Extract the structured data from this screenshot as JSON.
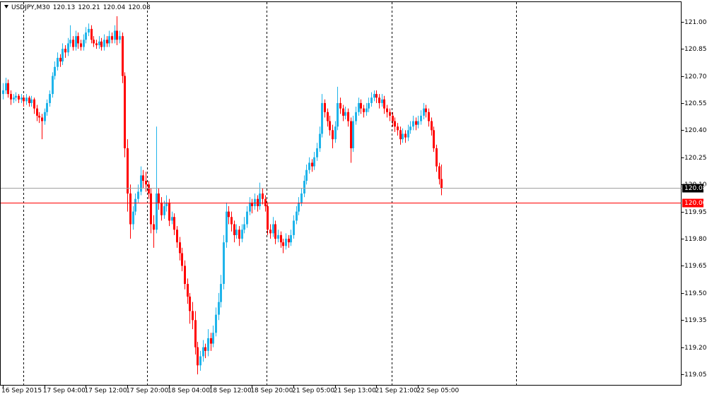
{
  "chart_data": {
    "type": "candlestick",
    "symbol": "USDJPY,M30",
    "bull_color": "#1fb4ea",
    "bear_color": "#ff0000",
    "ylim": [
      118.99,
      121.11
    ],
    "yticks": [
      {
        "value": 121,
        "label": "121.00"
      },
      120.85,
      {
        "value": 120.7,
        "label": "120.70"
      },
      120.55,
      {
        "value": 120.4,
        "label": "120.40"
      },
      120.25,
      {
        "value": 120.1,
        "label": "120.10"
      },
      119.95,
      {
        "value": 119.8,
        "label": "119.80"
      },
      119.65,
      {
        "value": 119.5,
        "label": "119.50"
      },
      119.35,
      {
        "value": 119.2,
        "label": "119.20"
      },
      119.05
    ],
    "hline": {
      "value": 120,
      "label": "120.00",
      "color": "#ff0000"
    },
    "categories": [
      "16 Sep 2015",
      null,
      null,
      null,
      null,
      null,
      null,
      null,
      null,
      null,
      null,
      null,
      null,
      null,
      null,
      null,
      "17 Sep 04:00",
      null,
      null,
      null,
      null,
      null,
      null,
      null,
      null,
      null,
      null,
      null,
      null,
      null,
      null,
      null,
      "17 Sep 12:00",
      null,
      null,
      null,
      null,
      null,
      null,
      null,
      null,
      null,
      null,
      null,
      null,
      null,
      null,
      null,
      "17 Sep 20:00",
      null,
      null,
      null,
      null,
      null,
      null,
      null,
      null,
      null,
      null,
      null,
      null,
      null,
      null,
      null,
      "18 Sep 04:00",
      null,
      null,
      null,
      null,
      null,
      null,
      null,
      null,
      null,
      null,
      null,
      null,
      null,
      null,
      null,
      "18 Sep 12:00",
      null,
      null,
      null,
      null,
      null,
      null,
      null,
      null,
      null,
      null,
      null,
      null,
      null,
      null,
      null,
      "18 Sep 20:00",
      null,
      null,
      null,
      null,
      null,
      null,
      null,
      null,
      null,
      null,
      null,
      null,
      null,
      null,
      null,
      "21 Sep 05:00",
      null,
      null,
      null,
      null,
      null,
      null,
      null,
      null,
      null,
      null,
      null,
      null,
      null,
      null,
      null,
      "21 Sep 13:00",
      null,
      null,
      null,
      null,
      null,
      null,
      null,
      null,
      null,
      null,
      null,
      null,
      null,
      null,
      null,
      "21 Sep 21:00",
      null,
      null,
      null,
      null,
      null,
      null,
      null,
      null,
      null,
      null,
      null,
      null,
      null,
      null,
      null,
      "22 Sep 05:00",
      null,
      null,
      null,
      null,
      null,
      null,
      null,
      null,
      null
    ],
    "ohlc": [
      [
        120.6,
        120.66,
        120.57,
        120.62
      ],
      [
        120.62,
        120.69,
        120.6,
        120.66
      ],
      [
        120.66,
        120.68,
        120.58,
        120.6
      ],
      [
        120.6,
        120.62,
        120.54,
        120.57
      ],
      [
        120.57,
        120.6,
        120.55,
        120.58
      ],
      [
        120.58,
        120.61,
        120.56,
        120.59
      ],
      [
        120.59,
        120.6,
        120.55,
        120.57
      ],
      [
        120.57,
        120.6,
        120.55,
        120.58
      ],
      [
        120.58,
        120.59,
        120.53,
        120.56
      ],
      [
        120.56,
        120.6,
        120.54,
        120.58
      ],
      [
        120.58,
        120.59,
        120.53,
        120.55
      ],
      [
        120.55,
        120.59,
        120.53,
        120.57
      ],
      [
        120.57,
        120.58,
        120.49,
        120.52
      ],
      [
        120.52,
        120.54,
        120.45,
        120.48
      ],
      [
        120.48,
        120.5,
        120.44,
        120.47
      ],
      [
        120.47,
        120.49,
        120.35,
        120.45
      ],
      [
        120.45,
        120.52,
        120.43,
        120.5
      ],
      [
        120.5,
        120.57,
        120.48,
        120.55
      ],
      [
        120.55,
        120.62,
        120.53,
        120.6
      ],
      [
        120.6,
        120.72,
        120.58,
        120.7
      ],
      [
        120.7,
        120.78,
        120.68,
        120.75
      ],
      [
        120.75,
        120.83,
        120.73,
        120.8
      ],
      [
        120.8,
        120.82,
        120.75,
        120.78
      ],
      [
        120.78,
        120.88,
        120.76,
        120.85
      ],
      [
        120.85,
        120.87,
        120.8,
        120.83
      ],
      [
        120.83,
        120.91,
        120.81,
        120.88
      ],
      [
        120.88,
        120.98,
        120.86,
        120.9
      ],
      [
        120.9,
        120.92,
        120.84,
        120.86
      ],
      [
        120.86,
        120.95,
        120.84,
        120.92
      ],
      [
        120.92,
        120.94,
        120.85,
        120.88
      ],
      [
        120.88,
        120.9,
        120.84,
        120.86
      ],
      [
        120.86,
        120.93,
        120.84,
        120.9
      ],
      [
        120.9,
        120.97,
        120.88,
        120.94
      ],
      [
        120.94,
        120.99,
        120.92,
        120.96
      ],
      [
        120.96,
        120.98,
        120.88,
        120.9
      ],
      [
        120.9,
        120.92,
        120.86,
        120.88
      ],
      [
        120.88,
        120.9,
        120.85,
        120.87
      ],
      [
        120.87,
        120.92,
        120.85,
        120.89
      ],
      [
        120.89,
        120.91,
        120.84,
        120.86
      ],
      [
        120.86,
        120.93,
        120.84,
        120.9
      ],
      [
        120.9,
        120.92,
        120.86,
        120.88
      ],
      [
        120.88,
        120.95,
        120.86,
        120.92
      ],
      [
        120.92,
        120.94,
        120.88,
        120.9
      ],
      [
        120.9,
        120.98,
        120.88,
        120.95
      ],
      [
        120.95,
        121.03,
        120.87,
        120.9
      ],
      [
        120.9,
        120.95,
        120.88,
        120.92
      ],
      [
        120.92,
        120.94,
        120.66,
        120.7
      ],
      [
        120.7,
        120.72,
        120.25,
        120.3
      ],
      [
        120.3,
        120.35,
        119.95,
        120.05
      ],
      [
        120.05,
        120.1,
        119.8,
        119.88
      ],
      [
        119.88,
        119.98,
        119.85,
        119.95
      ],
      [
        119.95,
        120.05,
        119.93,
        120.02
      ],
      [
        120.02,
        120.1,
        120.0,
        120.06
      ],
      [
        120.06,
        120.2,
        120.04,
        120.15
      ],
      [
        120.15,
        120.18,
        120.08,
        120.12
      ],
      [
        120.12,
        120.17,
        120.06,
        120.1
      ],
      [
        120.1,
        120.12,
        120.02,
        120.05
      ],
      [
        120.05,
        120.08,
        119.83,
        119.88
      ],
      [
        119.88,
        119.93,
        119.75,
        119.85
      ],
      [
        119.85,
        120.42,
        119.83,
        120.05
      ],
      [
        120.05,
        120.08,
        119.96,
        120.0
      ],
      [
        120.0,
        120.03,
        119.9,
        119.93
      ],
      [
        119.93,
        120.01,
        119.91,
        119.98
      ],
      [
        119.98,
        120.04,
        119.95,
        120.0
      ],
      [
        120.0,
        120.02,
        119.87,
        119.9
      ],
      [
        119.9,
        119.95,
        119.88,
        119.92
      ],
      [
        119.92,
        119.94,
        119.82,
        119.85
      ],
      [
        119.85,
        119.87,
        119.75,
        119.78
      ],
      [
        119.78,
        119.81,
        119.68,
        119.72
      ],
      [
        119.72,
        119.75,
        119.62,
        119.65
      ],
      [
        119.65,
        119.68,
        119.52,
        119.55
      ],
      [
        119.55,
        119.58,
        119.44,
        119.48
      ],
      [
        119.48,
        119.5,
        119.33,
        119.4
      ],
      [
        119.4,
        119.45,
        119.3,
        119.35
      ],
      [
        119.35,
        119.4,
        119.16,
        119.2
      ],
      [
        119.2,
        119.23,
        119.05,
        119.1
      ],
      [
        119.1,
        119.18,
        119.07,
        119.15
      ],
      [
        119.15,
        119.24,
        119.12,
        119.2
      ],
      [
        119.2,
        119.22,
        119.14,
        119.18
      ],
      [
        119.18,
        119.3,
        119.15,
        119.25
      ],
      [
        119.25,
        119.28,
        119.18,
        119.22
      ],
      [
        119.22,
        119.32,
        119.2,
        119.28
      ],
      [
        119.28,
        119.42,
        119.26,
        119.38
      ],
      [
        119.38,
        119.5,
        119.35,
        119.45
      ],
      [
        119.45,
        119.6,
        119.42,
        119.55
      ],
      [
        119.55,
        119.82,
        119.52,
        119.78
      ],
      [
        119.78,
        120.0,
        119.75,
        119.95
      ],
      [
        119.95,
        119.98,
        119.88,
        119.92
      ],
      [
        119.92,
        119.95,
        119.84,
        119.88
      ],
      [
        119.88,
        119.9,
        119.78,
        119.82
      ],
      [
        119.82,
        119.88,
        119.8,
        119.85
      ],
      [
        119.85,
        119.87,
        119.76,
        119.8
      ],
      [
        119.8,
        119.88,
        119.78,
        119.85
      ],
      [
        119.85,
        119.92,
        119.83,
        119.88
      ],
      [
        119.88,
        119.98,
        119.86,
        119.95
      ],
      [
        119.95,
        120.03,
        119.93,
        120.0
      ],
      [
        120.0,
        120.02,
        119.94,
        119.98
      ],
      [
        119.98,
        120.05,
        119.96,
        120.02
      ],
      [
        120.02,
        120.04,
        119.95,
        119.98
      ],
      [
        119.98,
        120.11,
        119.96,
        120.05
      ],
      [
        120.05,
        120.08,
        119.99,
        120.02
      ],
      [
        120.02,
        120.04,
        119.95,
        119.98
      ],
      [
        119.98,
        120.0,
        119.82,
        119.85
      ],
      [
        119.85,
        119.88,
        119.8,
        119.83
      ],
      [
        119.83,
        119.92,
        119.81,
        119.88
      ],
      [
        119.88,
        119.9,
        119.77,
        119.8
      ],
      [
        119.8,
        119.85,
        119.78,
        119.82
      ],
      [
        119.82,
        119.84,
        119.75,
        119.78
      ],
      [
        119.78,
        119.8,
        119.72,
        119.76
      ],
      [
        119.76,
        119.83,
        119.74,
        119.8
      ],
      [
        119.8,
        119.82,
        119.75,
        119.78
      ],
      [
        119.78,
        119.85,
        119.76,
        119.82
      ],
      [
        119.82,
        119.93,
        119.8,
        119.9
      ],
      [
        119.9,
        119.98,
        119.88,
        119.95
      ],
      [
        119.95,
        120.03,
        119.93,
        120.0
      ],
      [
        120.0,
        120.08,
        119.98,
        120.05
      ],
      [
        120.05,
        120.15,
        120.03,
        120.12
      ],
      [
        120.12,
        120.21,
        120.1,
        120.18
      ],
      [
        120.18,
        120.25,
        120.16,
        120.22
      ],
      [
        120.22,
        120.24,
        120.17,
        120.2
      ],
      [
        120.2,
        120.28,
        120.18,
        120.25
      ],
      [
        120.25,
        120.33,
        120.23,
        120.3
      ],
      [
        120.3,
        120.42,
        120.28,
        120.38
      ],
      [
        120.38,
        120.6,
        120.36,
        120.55
      ],
      [
        120.55,
        120.57,
        120.47,
        120.5
      ],
      [
        120.5,
        120.52,
        120.42,
        120.45
      ],
      [
        120.45,
        120.48,
        120.37,
        120.4
      ],
      [
        120.4,
        120.43,
        120.3,
        120.35
      ],
      [
        120.35,
        120.45,
        120.33,
        120.42
      ],
      [
        120.42,
        120.64,
        120.4,
        120.55
      ],
      [
        120.55,
        120.58,
        120.49,
        120.52
      ],
      [
        120.52,
        120.54,
        120.45,
        120.48
      ],
      [
        120.48,
        120.53,
        120.46,
        120.5
      ],
      [
        120.5,
        120.52,
        120.42,
        120.45
      ],
      [
        120.45,
        120.47,
        120.22,
        120.3
      ],
      [
        120.3,
        120.48,
        120.28,
        120.45
      ],
      [
        120.45,
        120.53,
        120.43,
        120.5
      ],
      [
        120.5,
        120.58,
        120.48,
        120.55
      ],
      [
        120.55,
        120.57,
        120.49,
        120.52
      ],
      [
        120.52,
        120.54,
        120.47,
        120.5
      ],
      [
        120.5,
        120.55,
        120.48,
        120.52
      ],
      [
        120.52,
        120.58,
        120.5,
        120.55
      ],
      [
        120.55,
        120.61,
        120.53,
        120.58
      ],
      [
        120.58,
        120.62,
        120.56,
        120.6
      ],
      [
        120.6,
        120.62,
        120.55,
        120.58
      ],
      [
        120.58,
        120.6,
        120.52,
        120.55
      ],
      [
        120.55,
        120.6,
        120.53,
        120.57
      ],
      [
        120.57,
        120.59,
        120.49,
        120.52
      ],
      [
        120.52,
        120.54,
        120.47,
        120.5
      ],
      [
        120.5,
        120.52,
        120.45,
        120.48
      ],
      [
        120.48,
        120.5,
        120.42,
        120.45
      ],
      [
        120.45,
        120.47,
        120.39,
        120.42
      ],
      [
        120.42,
        120.44,
        120.37,
        120.4
      ],
      [
        120.4,
        120.42,
        120.32,
        120.35
      ],
      [
        120.35,
        120.41,
        120.33,
        120.38
      ],
      [
        120.38,
        120.4,
        120.33,
        120.36
      ],
      [
        120.36,
        120.43,
        120.34,
        120.4
      ],
      [
        120.4,
        120.45,
        120.38,
        120.42
      ],
      [
        120.42,
        120.48,
        120.4,
        120.45
      ],
      [
        120.45,
        120.47,
        120.4,
        120.43
      ],
      [
        120.43,
        120.48,
        120.41,
        120.45
      ],
      [
        120.45,
        120.51,
        120.43,
        120.48
      ],
      [
        120.48,
        120.55,
        120.46,
        120.52
      ],
      [
        120.52,
        120.54,
        120.47,
        120.5
      ],
      [
        120.5,
        120.52,
        120.42,
        120.45
      ],
      [
        120.45,
        120.47,
        120.37,
        120.4
      ],
      [
        120.4,
        120.42,
        120.28,
        120.3
      ],
      [
        120.3,
        120.32,
        120.17,
        120.2
      ],
      [
        120.2,
        120.22,
        120.1,
        120.13
      ],
      [
        120.13,
        120.21,
        120.04,
        120.08
      ]
    ]
  }
}
